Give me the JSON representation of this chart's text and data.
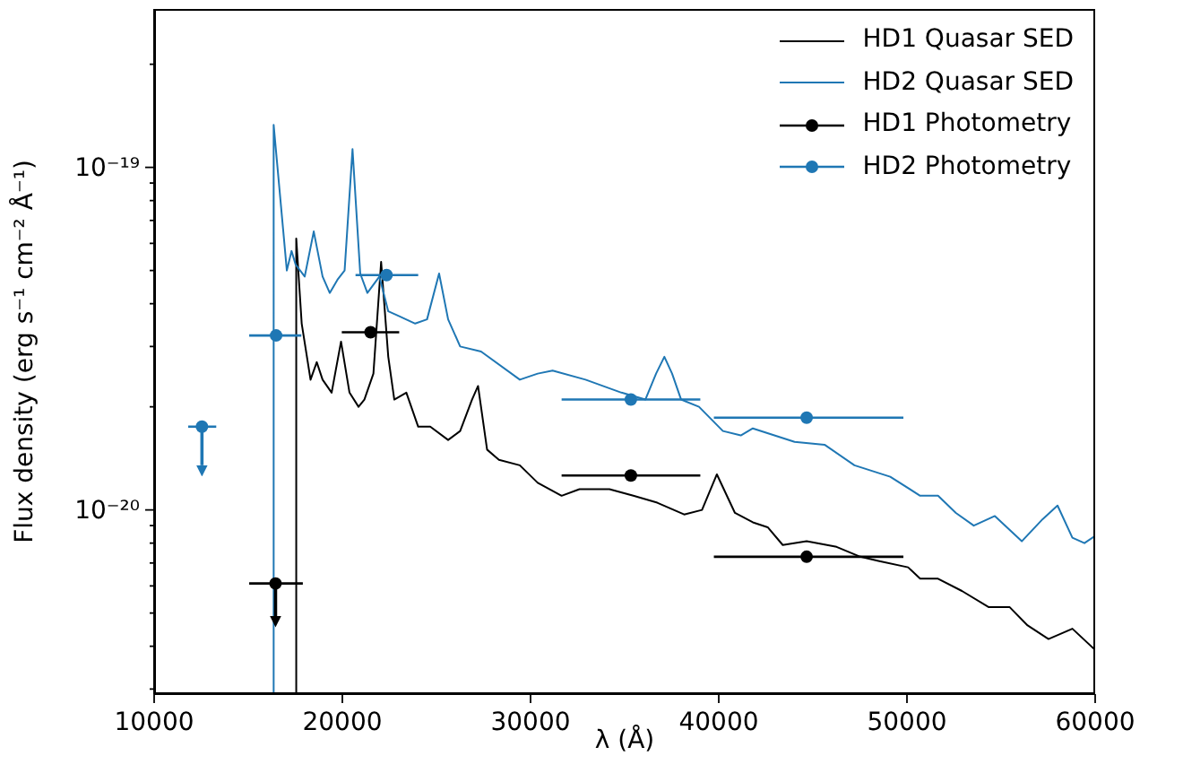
{
  "chart_data": {
    "type": "line",
    "xlabel": "λ (Å)",
    "ylabel": "Flux density (erg s⁻¹ cm⁻² Å⁻¹)",
    "xlim": [
      10000,
      60000
    ],
    "xticks": [
      10000,
      20000,
      30000,
      40000,
      50000,
      60000
    ],
    "ylim": [
      2.9e-21,
      2.9e-19
    ],
    "yticks": [
      {
        "value": 3e-21,
        "label": null
      },
      {
        "value": 4e-21,
        "label": null
      },
      {
        "value": 5e-21,
        "label": null
      },
      {
        "value": 6e-21,
        "label": null
      },
      {
        "value": 7e-21,
        "label": null
      },
      {
        "value": 8e-21,
        "label": null
      },
      {
        "value": 9e-21,
        "label": null
      },
      {
        "value": 1e-20,
        "label": "10⁻²⁰"
      },
      {
        "value": 2e-20,
        "label": null
      },
      {
        "value": 3e-20,
        "label": null
      },
      {
        "value": 4e-20,
        "label": null
      },
      {
        "value": 5e-20,
        "label": null
      },
      {
        "value": 6e-20,
        "label": null
      },
      {
        "value": 7e-20,
        "label": null
      },
      {
        "value": 8e-20,
        "label": null
      },
      {
        "value": 9e-20,
        "label": null
      },
      {
        "value": 1e-19,
        "label": "10⁻¹⁹"
      },
      {
        "value": 2e-19,
        "label": null
      }
    ],
    "log": "y",
    "legend": "top right",
    "line_style": "solid",
    "series": [
      {
        "name": "HD1 Quasar SED",
        "color": "#000000",
        "x": [
          17550,
          17550,
          17840,
          18310,
          18640,
          18950,
          19430,
          19930,
          20380,
          20860,
          21170,
          21650,
          22060,
          22440,
          22760,
          23400,
          24030,
          24670,
          25620,
          26260,
          26890,
          27210,
          27690,
          28320,
          29430,
          30380,
          31650,
          32600,
          34190,
          35460,
          36730,
          38160,
          39110,
          39900,
          40860,
          41810,
          42600,
          43400,
          44670,
          46260,
          47520,
          48480,
          50060,
          50700,
          51650,
          52920,
          54350,
          55460,
          56410,
          57520,
          58790,
          60000
        ],
        "values": [
          2.9e-21,
          6.2e-20,
          3.5e-20,
          2.4e-20,
          2.7e-20,
          2.4e-20,
          2.2e-20,
          3.1e-20,
          2.2e-20,
          2e-20,
          2.1e-20,
          2.5e-20,
          5.3e-20,
          2.8e-20,
          2.1e-20,
          2.2e-20,
          1.75e-20,
          1.75e-20,
          1.6e-20,
          1.7e-20,
          2.1e-20,
          2.3e-20,
          1.5e-20,
          1.4e-20,
          1.35e-20,
          1.2e-20,
          1.1e-20,
          1.15e-20,
          1.15e-20,
          1.1e-20,
          1.05e-20,
          9.7e-21,
          1e-20,
          1.27e-20,
          9.8e-21,
          9.2e-21,
          8.9e-21,
          7.9e-21,
          8.1e-21,
          7.8e-21,
          7.3e-21,
          7.1e-21,
          6.8e-21,
          6.3e-21,
          6.3e-21,
          5.8e-21,
          5.2e-21,
          5.2e-21,
          4.6e-21,
          4.2e-21,
          4.5e-21,
          3.9e-21
        ]
      },
      {
        "name": "HD2 Quasar SED",
        "color": "#1f77b4",
        "x": [
          16350,
          16350,
          17050,
          17300,
          17520,
          18000,
          18480,
          18950,
          19330,
          19740,
          20120,
          20540,
          20950,
          21330,
          21970,
          22440,
          22920,
          23870,
          24500,
          25140,
          25620,
          26260,
          27370,
          29430,
          30380,
          31170,
          32920,
          34830,
          36100,
          36670,
          37110,
          37520,
          38000,
          38950,
          40220,
          41170,
          41810,
          44030,
          45620,
          47210,
          49110,
          50700,
          51650,
          52600,
          53550,
          54670,
          56100,
          57210,
          58000,
          58790,
          59430,
          60000
        ],
        "values": [
          2.9e-21,
          1.33e-19,
          5e-20,
          5.7e-20,
          5.2e-20,
          4.8e-20,
          6.5e-20,
          4.8e-20,
          4.3e-20,
          4.7e-20,
          5e-20,
          1.13e-19,
          4.9e-20,
          4.3e-20,
          4.8e-20,
          3.8e-20,
          3.7e-20,
          3.5e-20,
          3.6e-20,
          4.9e-20,
          3.6e-20,
          3e-20,
          2.9e-20,
          2.4e-20,
          2.5e-20,
          2.55e-20,
          2.4e-20,
          2.2e-20,
          2.1e-20,
          2.5e-20,
          2.8e-20,
          2.5e-20,
          2.1e-20,
          2e-20,
          1.7e-20,
          1.65e-20,
          1.73e-20,
          1.58e-20,
          1.55e-20,
          1.35e-20,
          1.25e-20,
          1.1e-20,
          1.1e-20,
          9.8e-21,
          9e-21,
          9.6e-21,
          8.1e-21,
          9.4e-21,
          1.03e-20,
          8.3e-21,
          8e-21,
          8.4e-21
        ]
      },
      {
        "type": "scatter",
        "name": "HD1 Photometry",
        "color": "#000000",
        "marker": "circle",
        "x": [
          16450,
          21500,
          35330,
          44670
        ],
        "values": [
          6.1e-21,
          3.3e-20,
          1.26e-20,
          7.3e-21
        ],
        "errors": [
          [
            4.9e-21,
            6.1e-21
          ],
          null,
          null,
          null
        ],
        "xerrors": [
          [
            15050,
            17900
          ],
          [
            19970,
            23020
          ],
          [
            31650,
            39020
          ],
          [
            39740,
            49810
          ]
        ]
      },
      {
        "type": "scatter",
        "name": "HD2 Photometry",
        "color": "#1f77b4",
        "marker": "circle",
        "x": [
          12540,
          16480,
          22350,
          35330,
          44670
        ],
        "values": [
          1.75e-20,
          3.23e-20,
          4.85e-20,
          2.1e-20,
          1.86e-20
        ],
        "errors": [
          [
            1.35e-20,
            1.75e-20
          ],
          null,
          null,
          null,
          null
        ],
        "xerrors": [
          [
            11810,
            13300
          ],
          [
            15050,
            17820
          ],
          [
            20700,
            24030
          ],
          [
            31650,
            39020
          ],
          [
            39740,
            49810
          ]
        ]
      }
    ]
  }
}
